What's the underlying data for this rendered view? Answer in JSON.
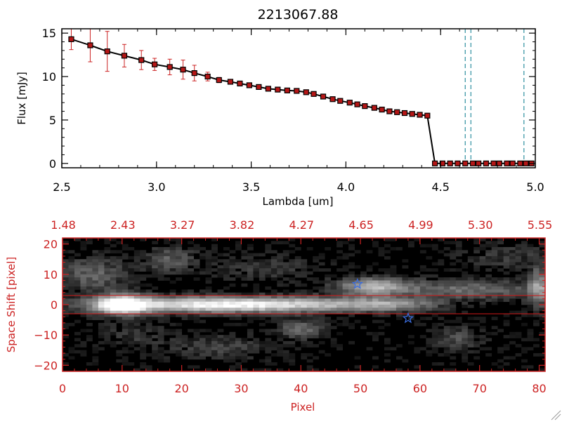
{
  "colors": {
    "axis_top": "#000000",
    "axis_bottom": "#cc2222",
    "series_line": "#000000",
    "marker_fill": "#b51616",
    "errorbar": "#cc2222",
    "vline": "#2e8fa0",
    "star": "#3a6de0",
    "trace": "#d01818"
  },
  "chart_data": [
    {
      "type": "line",
      "title": "2213067.88",
      "xlabel": "Lambda [um]",
      "ylabel": "Flux [mJy]",
      "xlim": [
        2.5,
        5.0
      ],
      "ylim": [
        -0.5,
        15.5
      ],
      "xticks": [
        2.5,
        3.0,
        3.5,
        4.0,
        4.5,
        5.0
      ],
      "xtick_labels": [
        "2.5",
        "3.0",
        "3.5",
        "4.0",
        "4.5",
        "5.0"
      ],
      "yticks": [
        0,
        5,
        10,
        15
      ],
      "ytick_labels": [
        "0",
        "5",
        "10",
        "15"
      ],
      "grid": false,
      "series": [
        {
          "x": [
            2.55,
            2.65,
            2.74,
            2.83,
            2.92,
            2.99,
            3.07,
            3.14,
            3.2,
            3.27,
            3.33,
            3.39,
            3.44,
            3.49,
            3.54,
            3.59,
            3.64,
            3.69,
            3.74,
            3.79,
            3.83,
            3.88,
            3.93,
            3.97,
            4.02,
            4.06,
            4.1,
            4.15,
            4.19,
            4.23,
            4.27,
            4.31,
            4.35,
            4.39,
            4.43,
            4.47,
            4.51,
            4.55,
            4.59,
            4.63,
            4.67,
            4.7,
            4.74,
            4.78,
            4.81,
            4.85,
            4.88,
            4.92,
            4.95,
            4.98
          ],
          "y": [
            14.3,
            13.6,
            12.9,
            12.4,
            11.9,
            11.4,
            11.1,
            10.8,
            10.4,
            10.0,
            9.6,
            9.4,
            9.2,
            9.0,
            8.8,
            8.6,
            8.5,
            8.4,
            8.35,
            8.2,
            8.0,
            7.7,
            7.4,
            7.2,
            7.0,
            6.8,
            6.6,
            6.4,
            6.2,
            6.0,
            5.9,
            5.8,
            5.7,
            5.6,
            5.5,
            0.0,
            0.0,
            0.0,
            0.0,
            0.0,
            0.0,
            0.0,
            0.0,
            0.0,
            0.0,
            0.0,
            0.0,
            0.0,
            0.0,
            0.0
          ],
          "yerr": [
            1.2,
            1.9,
            2.3,
            1.3,
            1.1,
            0.7,
            0.9,
            1.1,
            0.9,
            0.5,
            0.3,
            0.2,
            0.15,
            0.15,
            0.15,
            0.15,
            0.15,
            0.15,
            0.15,
            0.15,
            0.15,
            0.15,
            0.15,
            0.15,
            0.15,
            0.15,
            0.15,
            0.15,
            0.15,
            0.15,
            0.15,
            0.15,
            0.15,
            0.15,
            0.15,
            0.05,
            0.05,
            0.05,
            0.05,
            0.05,
            0.05,
            0.05,
            0.05,
            0.05,
            0.05,
            0.05,
            0.05,
            0.05,
            0.05,
            0.05
          ]
        }
      ],
      "vlines": [
        4.63,
        4.66,
        4.94
      ]
    },
    {
      "type": "heatmap",
      "xlabel": "Pixel",
      "ylabel": "Space Shift [pixel]",
      "xlim": [
        0,
        81
      ],
      "ylim": [
        -22,
        22
      ],
      "xticks": [
        0,
        10,
        20,
        30,
        40,
        50,
        60,
        70,
        80
      ],
      "xtick_labels": [
        "0",
        "10",
        "20",
        "30",
        "40",
        "50",
        "60",
        "70",
        "80"
      ],
      "yticks": [
        -20,
        -10,
        0,
        10,
        20
      ],
      "ytick_labels": [
        "−20",
        "−10",
        "0",
        "10",
        "20"
      ],
      "top_xtick_labels": [
        "1.48",
        "2.43",
        "3.27",
        "3.82",
        "4.27",
        "4.65",
        "4.99",
        "5.30",
        "5.55"
      ],
      "trace_lines_y": [
        3,
        -3
      ],
      "stars": [
        {
          "x": 49.5,
          "y": 6.8
        },
        {
          "x": 58,
          "y": -4.5
        }
      ],
      "features": [
        {
          "x": 10,
          "y": 0,
          "amp": 1.0,
          "sx": 3.0,
          "sy": 2.2
        },
        {
          "x": 22,
          "y": 0,
          "amp": 0.75,
          "sx": 12,
          "sy": 1.8
        },
        {
          "x": 40,
          "y": 0,
          "amp": 0.55,
          "sx": 12,
          "sy": 1.7
        },
        {
          "x": 55,
          "y": 0,
          "amp": 0.35,
          "sx": 5,
          "sy": 1.5
        },
        {
          "x": 52,
          "y": 6,
          "amp": 0.6,
          "sx": 4,
          "sy": 2.0
        },
        {
          "x": 68,
          "y": 5,
          "amp": 0.35,
          "sx": 10,
          "sy": 2.2
        },
        {
          "x": 80,
          "y": 6,
          "amp": 0.45,
          "sx": 1.2,
          "sy": 5
        },
        {
          "x": 5,
          "y": 10,
          "amp": 0.3,
          "sx": 4,
          "sy": 4
        },
        {
          "x": 18,
          "y": 15,
          "amp": 0.28,
          "sx": 3,
          "sy": 3
        },
        {
          "x": 40,
          "y": -8,
          "amp": 0.35,
          "sx": 2.5,
          "sy": 2.2
        },
        {
          "x": 66,
          "y": -11,
          "amp": 0.22,
          "sx": 3,
          "sy": 3
        },
        {
          "x": 26,
          "y": -14,
          "amp": 0.18,
          "sx": 6,
          "sy": 3
        },
        {
          "x": 34,
          "y": 12,
          "amp": 0.15,
          "sx": 6,
          "sy": 3
        },
        {
          "x": 74,
          "y": 16,
          "amp": 0.15,
          "sx": 5,
          "sy": 3
        },
        {
          "x": 12,
          "y": -10,
          "amp": 0.14,
          "sx": 4,
          "sy": 3
        }
      ]
    }
  ]
}
